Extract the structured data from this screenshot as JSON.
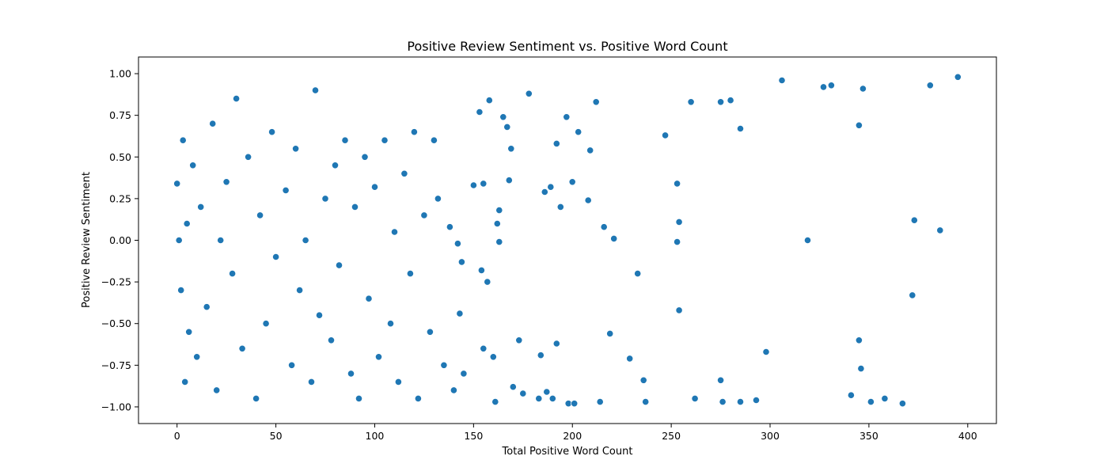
{
  "chart_data": {
    "type": "scatter",
    "title": "Positive Review Sentiment vs. Positive Word Count",
    "xlabel": "Total Positive Word Count",
    "ylabel": "Positive Review Sentiment",
    "xlim": [
      -19.5,
      414.5
    ],
    "ylim": [
      -1.1,
      1.1
    ],
    "xticks": [
      0,
      50,
      100,
      150,
      200,
      250,
      300,
      350,
      400
    ],
    "yticks": [
      -1.0,
      -0.75,
      -0.5,
      -0.25,
      0.0,
      0.25,
      0.5,
      0.75,
      1.0
    ],
    "xtick_labels": [
      "0",
      "50",
      "100",
      "150",
      "200",
      "250",
      "300",
      "350",
      "400"
    ],
    "ytick_labels": [
      "−1.00",
      "−0.75",
      "−0.50",
      "−0.25",
      "0.00",
      "0.25",
      "0.50",
      "0.75",
      "1.00"
    ],
    "marker_color": "#1f77b4",
    "marker_edge_color": "#ffffff",
    "grid": false,
    "legend": "none",
    "points": [
      [
        0,
        0.34
      ],
      [
        1,
        0.0
      ],
      [
        2,
        -0.3
      ],
      [
        3,
        0.6
      ],
      [
        4,
        -0.85
      ],
      [
        5,
        0.1
      ],
      [
        6,
        -0.55
      ],
      [
        8,
        0.45
      ],
      [
        10,
        -0.7
      ],
      [
        12,
        0.2
      ],
      [
        15,
        -0.4
      ],
      [
        18,
        0.7
      ],
      [
        20,
        -0.9
      ],
      [
        22,
        0.0
      ],
      [
        25,
        0.35
      ],
      [
        28,
        -0.2
      ],
      [
        30,
        0.85
      ],
      [
        33,
        -0.65
      ],
      [
        36,
        0.5
      ],
      [
        40,
        -0.95
      ],
      [
        42,
        0.15
      ],
      [
        45,
        -0.5
      ],
      [
        48,
        0.65
      ],
      [
        50,
        -0.1
      ],
      [
        55,
        0.3
      ],
      [
        58,
        -0.75
      ],
      [
        60,
        0.55
      ],
      [
        62,
        -0.3
      ],
      [
        65,
        0.0
      ],
      [
        68,
        -0.85
      ],
      [
        70,
        0.9
      ],
      [
        72,
        -0.45
      ],
      [
        75,
        0.25
      ],
      [
        78,
        -0.6
      ],
      [
        80,
        0.45
      ],
      [
        82,
        -0.15
      ],
      [
        85,
        0.6
      ],
      [
        88,
        -0.8
      ],
      [
        90,
        0.2
      ],
      [
        92,
        -0.95
      ],
      [
        95,
        0.5
      ],
      [
        97,
        -0.35
      ],
      [
        100,
        0.32
      ],
      [
        102,
        -0.7
      ],
      [
        105,
        0.6
      ],
      [
        108,
        -0.5
      ],
      [
        110,
        0.05
      ],
      [
        112,
        -0.85
      ],
      [
        115,
        0.4
      ],
      [
        118,
        -0.2
      ],
      [
        120,
        0.65
      ],
      [
        122,
        -0.95
      ],
      [
        125,
        0.15
      ],
      [
        128,
        -0.55
      ],
      [
        130,
        0.6
      ],
      [
        132,
        0.25
      ],
      [
        135,
        -0.75
      ],
      [
        138,
        0.08
      ],
      [
        140,
        -0.9
      ],
      [
        142,
        -0.02
      ],
      [
        143,
        -0.44
      ],
      [
        144,
        -0.13
      ],
      [
        145,
        -0.8
      ],
      [
        150,
        0.33
      ],
      [
        153,
        0.77
      ],
      [
        154,
        -0.18
      ],
      [
        155,
        0.34
      ],
      [
        155,
        -0.65
      ],
      [
        157,
        -0.25
      ],
      [
        158,
        0.84
      ],
      [
        160,
        -0.7
      ],
      [
        161,
        -0.97
      ],
      [
        162,
        0.1
      ],
      [
        163,
        0.18
      ],
      [
        163,
        -0.01
      ],
      [
        165,
        0.74
      ],
      [
        167,
        0.68
      ],
      [
        168,
        0.36
      ],
      [
        169,
        0.55
      ],
      [
        170,
        -0.88
      ],
      [
        173,
        -0.6
      ],
      [
        175,
        -0.92
      ],
      [
        178,
        0.88
      ],
      [
        183,
        -0.95
      ],
      [
        184,
        -0.69
      ],
      [
        186,
        0.29
      ],
      [
        187,
        -0.91
      ],
      [
        189,
        0.32
      ],
      [
        190,
        -0.95
      ],
      [
        192,
        0.58
      ],
      [
        192,
        -0.62
      ],
      [
        194,
        0.2
      ],
      [
        197,
        0.74
      ],
      [
        198,
        -0.98
      ],
      [
        200,
        0.35
      ],
      [
        201,
        -0.98
      ],
      [
        203,
        0.65
      ],
      [
        208,
        0.24
      ],
      [
        209,
        0.54
      ],
      [
        212,
        0.83
      ],
      [
        214,
        -0.97
      ],
      [
        216,
        0.08
      ],
      [
        219,
        -0.56
      ],
      [
        221,
        0.01
      ],
      [
        229,
        -0.71
      ],
      [
        233,
        -0.2
      ],
      [
        236,
        -0.84
      ],
      [
        237,
        -0.97
      ],
      [
        247,
        0.63
      ],
      [
        253,
        0.34
      ],
      [
        253,
        -0.01
      ],
      [
        254,
        0.11
      ],
      [
        254,
        -0.42
      ],
      [
        260,
        0.83
      ],
      [
        262,
        -0.95
      ],
      [
        275,
        0.83
      ],
      [
        275,
        -0.84
      ],
      [
        276,
        -0.97
      ],
      [
        280,
        0.84
      ],
      [
        285,
        0.67
      ],
      [
        285,
        -0.97
      ],
      [
        293,
        -0.96
      ],
      [
        298,
        -0.67
      ],
      [
        306,
        0.96
      ],
      [
        319,
        0.0
      ],
      [
        327,
        0.92
      ],
      [
        331,
        0.93
      ],
      [
        341,
        -0.93
      ],
      [
        345,
        0.69
      ],
      [
        345,
        -0.6
      ],
      [
        346,
        -0.77
      ],
      [
        347,
        0.91
      ],
      [
        351,
        -0.97
      ],
      [
        358,
        -0.95
      ],
      [
        367,
        -0.98
      ],
      [
        372,
        -0.33
      ],
      [
        373,
        0.12
      ],
      [
        381,
        0.93
      ],
      [
        386,
        0.06
      ],
      [
        395,
        0.98
      ]
    ]
  }
}
